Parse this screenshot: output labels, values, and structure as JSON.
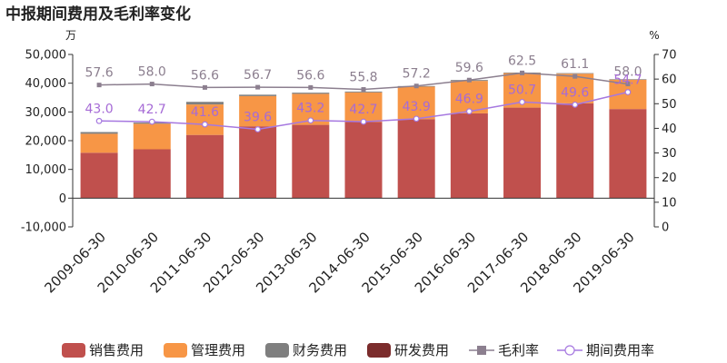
{
  "chart_data": {
    "type": "bar",
    "title": "中报期间费用及毛利率变化",
    "left_unit": "万",
    "right_unit": "%",
    "categories": [
      "2009-06-30",
      "2010-06-30",
      "2011-06-30",
      "2012-06-30",
      "2013-06-30",
      "2014-06-30",
      "2015-06-30",
      "2016-06-30",
      "2017-06-30",
      "2018-06-30",
      "2019-06-30"
    ],
    "ylim": [
      -10000,
      50000
    ],
    "yticks": [
      -10000,
      0,
      10000,
      20000,
      30000,
      40000,
      50000
    ],
    "ytick_labels": [
      "-10,000",
      "0",
      "10,000",
      "20,000",
      "30,000",
      "40,000",
      "50,000"
    ],
    "y2lim": [
      0,
      70
    ],
    "y2ticks": [
      0,
      10,
      20,
      30,
      40,
      50,
      60,
      70
    ],
    "y2tick_labels": [
      "0",
      "10",
      "20",
      "30",
      "40",
      "50",
      "60",
      "70"
    ],
    "bar_series": [
      {
        "name": "销售费用",
        "color": "#c0504d",
        "values": [
          15800,
          17000,
          22000,
          25000,
          25500,
          26500,
          27500,
          29500,
          31500,
          33000,
          31000
        ]
      },
      {
        "name": "管理费用",
        "color": "#f79646",
        "values": [
          6600,
          8900,
          10600,
          10500,
          10800,
          10300,
          11300,
          11300,
          12000,
          10300,
          10200
        ]
      },
      {
        "name": "财务费用",
        "color": "#7f7f7f",
        "values": [
          600,
          400,
          900,
          500,
          400,
          300,
          200,
          300,
          200,
          200,
          200
        ]
      },
      {
        "name": "研发费用",
        "color": "#7b2c2c",
        "values": [
          0,
          0,
          0,
          0,
          0,
          0,
          0,
          0,
          0,
          0,
          0
        ]
      }
    ],
    "line_series": [
      {
        "name": "毛利率",
        "color": "#8c7f8f",
        "marker": "square",
        "label_color": "#8c7f8f",
        "values": [
          57.6,
          58.0,
          56.6,
          56.7,
          56.6,
          55.8,
          57.2,
          59.6,
          62.5,
          61.1,
          58.0
        ],
        "labels": [
          "57.6",
          "58.0",
          "56.6",
          "56.7",
          "56.6",
          "55.8",
          "57.2",
          "59.6",
          "62.5",
          "61.1",
          "58.0"
        ]
      },
      {
        "name": "期间费用率",
        "color": "#a678e0",
        "marker": "circle",
        "label_color": "#a66bd6",
        "values": [
          43.0,
          42.7,
          41.6,
          39.6,
          43.2,
          42.7,
          43.9,
          46.9,
          50.7,
          49.6,
          54.7
        ],
        "labels": [
          "43.0",
          "42.7",
          "41.6",
          "39.6",
          "43.2",
          "42.7",
          "43.9",
          "46.9",
          "50.7",
          "49.6",
          "54.7"
        ]
      }
    ],
    "legend": {
      "position": "bottom"
    },
    "grid": false
  }
}
